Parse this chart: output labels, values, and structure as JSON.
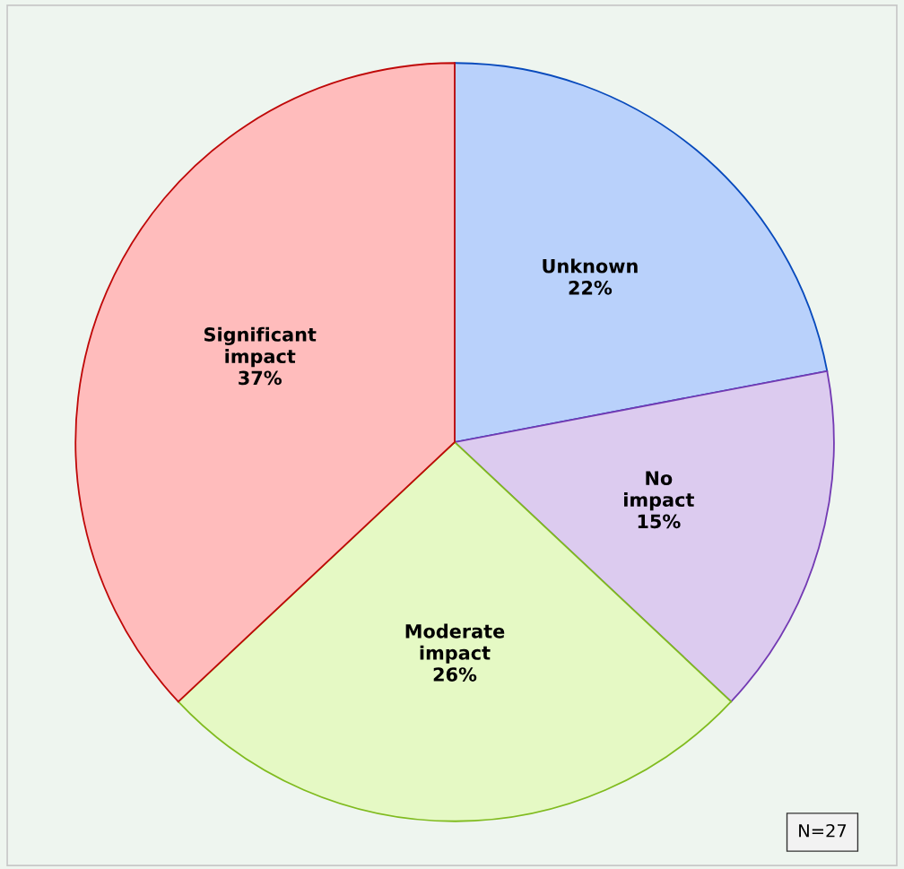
{
  "chart_data": {
    "type": "pie",
    "categories": [
      "Unknown",
      "No\nimpact",
      "Moderate\nimpact",
      "Significant\nimpact"
    ],
    "values": [
      22,
      15,
      26,
      37
    ],
    "value_labels": [
      "22%",
      "15%",
      "26%",
      "37%"
    ],
    "colors": [
      "#b9d1fb",
      "#dccbef",
      "#e5f9c4",
      "#ffbcbc"
    ],
    "annotations": [
      "N=27"
    ],
    "legend": false
  }
}
